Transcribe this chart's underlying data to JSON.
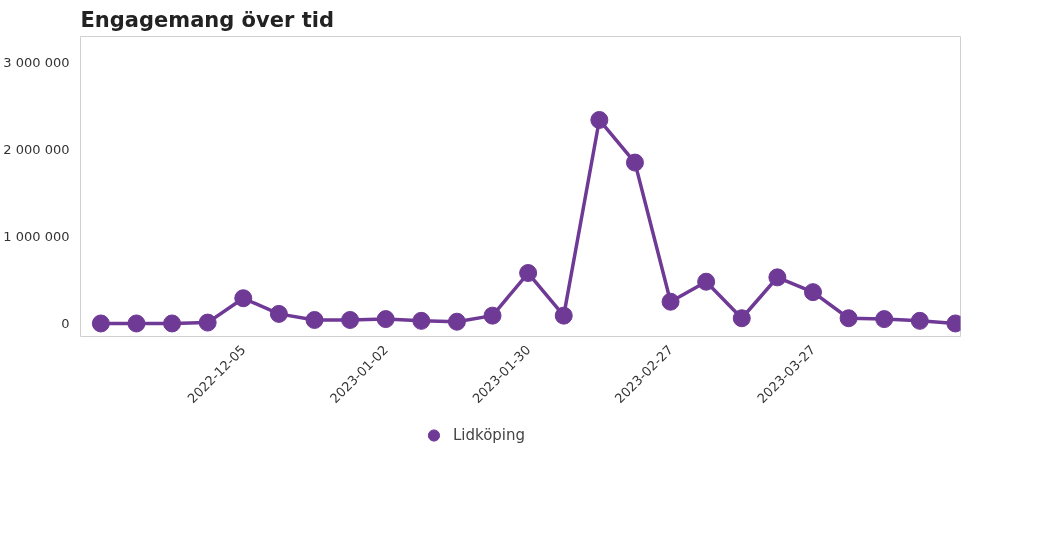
{
  "chart_data": {
    "type": "line",
    "title": "Engagemang över tid",
    "x": [
      "2022-11-07",
      "2022-11-14",
      "2022-11-21",
      "2022-11-28",
      "2022-12-05",
      "2022-12-12",
      "2022-12-19",
      "2022-12-26",
      "2023-01-02",
      "2023-01-09",
      "2023-01-16",
      "2023-01-23",
      "2023-01-30",
      "2023-02-06",
      "2023-02-13",
      "2023-02-20",
      "2023-02-27",
      "2023-03-06",
      "2023-03-13",
      "2023-03-20",
      "2023-03-27",
      "2023-04-03",
      "2023-04-10",
      "2023-04-17",
      "2023-04-24"
    ],
    "series": [
      {
        "name": "Lidköping",
        "color": "#6f3996",
        "values": [
          0,
          0,
          0,
          10000,
          290000,
          110000,
          40000,
          40000,
          50000,
          30000,
          20000,
          90000,
          580000,
          90000,
          2340000,
          1850000,
          250000,
          480000,
          60000,
          530000,
          360000,
          60000,
          50000,
          30000,
          0
        ]
      }
    ],
    "xlim": [
      "2022-11-03",
      "2023-04-25"
    ],
    "xticks": [
      {
        "value": "2022-12-05",
        "label": "2022-12-05"
      },
      {
        "value": "2023-01-02",
        "label": "2023-01-02"
      },
      {
        "value": "2023-01-30",
        "label": "2023-01-30"
      },
      {
        "value": "2023-02-27",
        "label": "2023-02-27"
      },
      {
        "value": "2023-03-27",
        "label": "2023-03-27"
      }
    ],
    "ylim": [
      -150000,
      3300000
    ],
    "yticks": [
      {
        "value": 0,
        "label": "0"
      },
      {
        "value": 1000000,
        "label": "1 000 000"
      },
      {
        "value": 2000000,
        "label": "2 000 000"
      },
      {
        "value": 3000000,
        "label": "3 000 000"
      }
    ],
    "grid": false,
    "legend": "bottom",
    "marker": "circle",
    "line_style": "solid"
  }
}
